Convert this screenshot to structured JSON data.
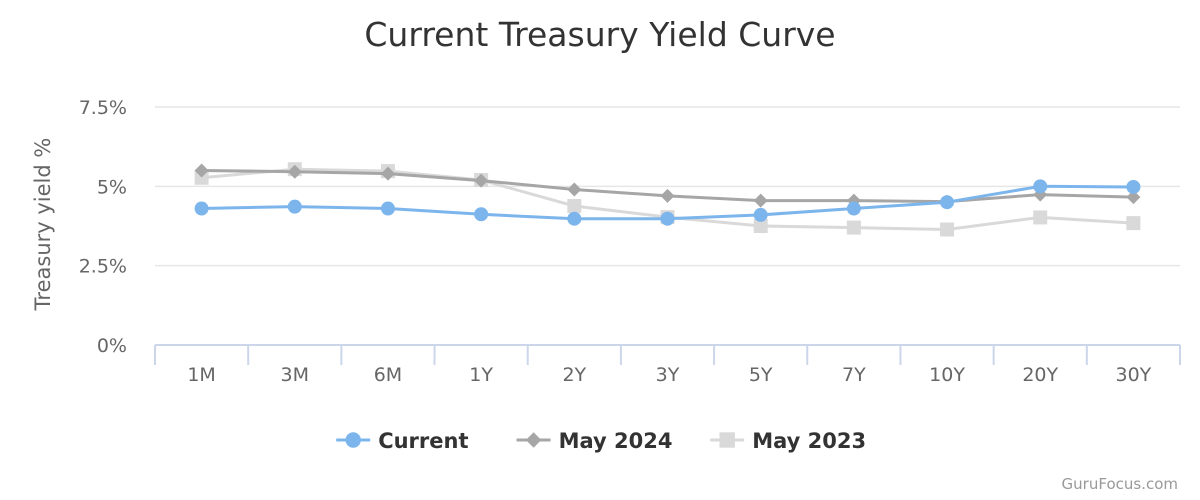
{
  "chart_data": {
    "type": "line",
    "title": "Current Treasury Yield Curve",
    "xlabel": "",
    "ylabel": "Treasury yield %",
    "categories": [
      "1M",
      "3M",
      "6M",
      "1Y",
      "2Y",
      "3Y",
      "5Y",
      "7Y",
      "10Y",
      "20Y",
      "30Y"
    ],
    "ylim": [
      0,
      7.5
    ],
    "yticks": [
      0,
      2.5,
      5,
      7.5
    ],
    "ytick_labels": [
      "0%",
      "2.5%",
      "5%",
      "7.5%"
    ],
    "grid": true,
    "legend_position": "bottom-center",
    "series": [
      {
        "name": "Current",
        "color": "#7cb5ec",
        "marker": "circle",
        "values": [
          4.3,
          4.36,
          4.3,
          4.12,
          3.98,
          3.98,
          4.1,
          4.3,
          4.5,
          5.0,
          4.98
        ]
      },
      {
        "name": "May 2024",
        "color": "#a6a6a6",
        "marker": "diamond",
        "values": [
          5.5,
          5.46,
          5.4,
          5.18,
          4.9,
          4.7,
          4.55,
          4.55,
          4.52,
          4.74,
          4.66
        ]
      },
      {
        "name": "May 2023",
        "color": "#d9d9d9",
        "marker": "square",
        "values": [
          5.27,
          5.54,
          5.48,
          5.2,
          4.38,
          4.03,
          3.75,
          3.7,
          3.64,
          4.02,
          3.84
        ]
      }
    ]
  },
  "credit": "GuruFocus.com"
}
